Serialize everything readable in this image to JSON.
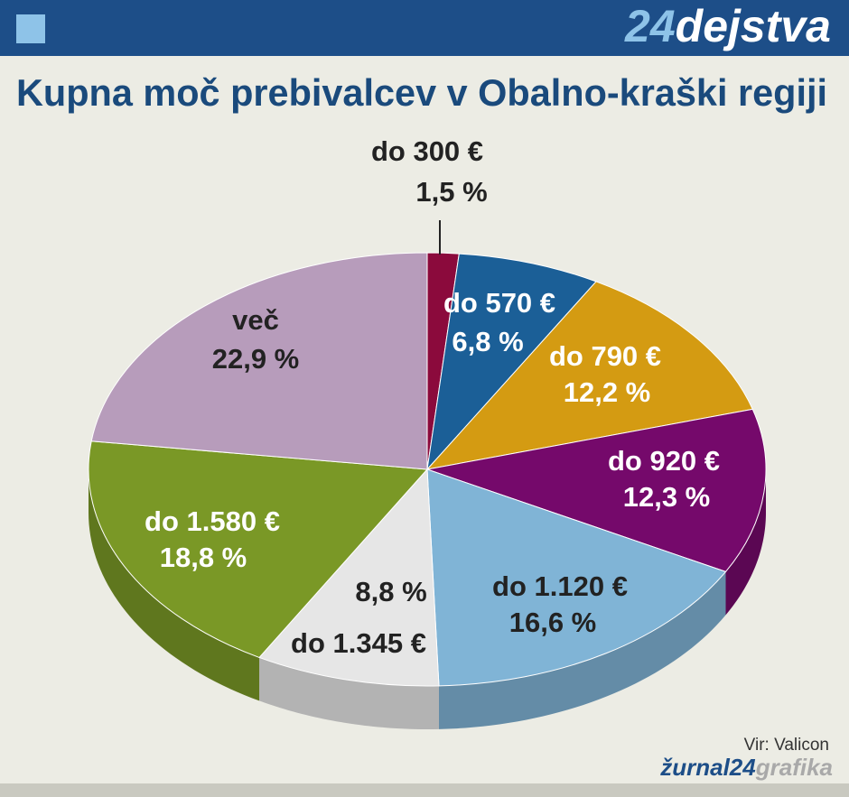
{
  "header": {
    "logo": {
      "number": "24",
      "word": "dejstva"
    }
  },
  "chart_data": {
    "type": "pie3d",
    "title": "Kupna moč prebivalcev v Obalno-kraški regiji",
    "categories": [
      "do 300 €",
      "do 570 €",
      "do 790 €",
      "do 920 €",
      "do 1.120 €",
      "do 1.345 €",
      "do 1.580 €",
      "več"
    ],
    "values": [
      1.5,
      6.8,
      12.2,
      12.3,
      16.6,
      8.8,
      18.8,
      22.9
    ],
    "value_labels": [
      "1,5 %",
      "6,8 %",
      "12,2 %",
      "12,3 %",
      "16,6 %",
      "8,8 %",
      "18,8 %",
      "22,9 %"
    ],
    "colors": [
      "#8b0a3c",
      "#1b5f97",
      "#d49b12",
      "#75096b",
      "#80b4d6",
      "#e6e6e6",
      "#7a9826",
      "#b79cbb"
    ],
    "source": "Vir: Valicon"
  },
  "footer": {
    "brand": {
      "main": "žurnal24",
      "suffix": "grafika"
    }
  }
}
